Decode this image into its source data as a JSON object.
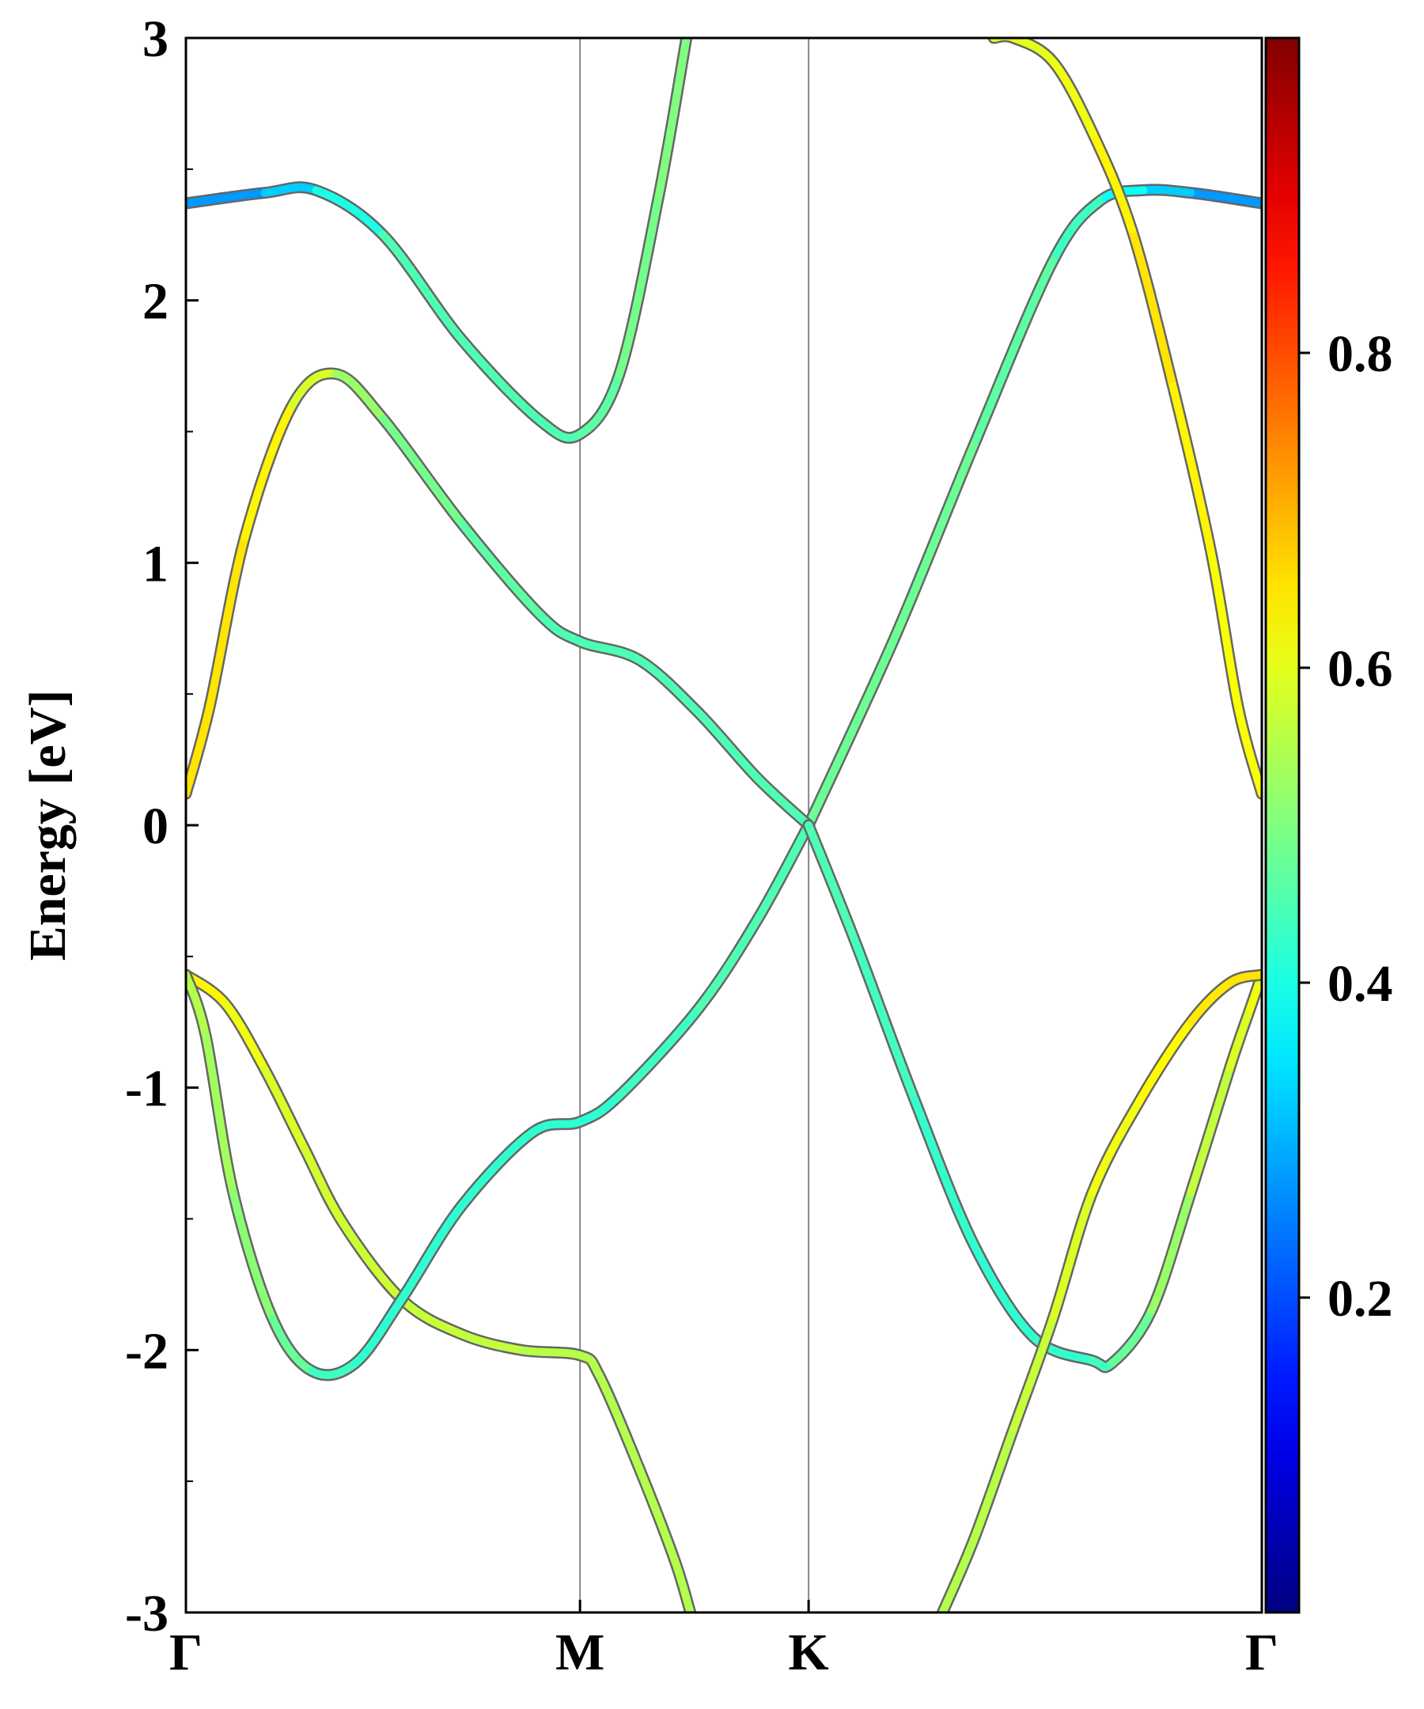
{
  "chart_data": {
    "type": "line",
    "title": "",
    "xlabel": "",
    "ylabel": "Energy [eV]",
    "ylim": [
      -3,
      3
    ],
    "yticks": [
      3,
      2,
      1,
      0,
      -1,
      -2,
      -3
    ],
    "ytick_labels": [
      "3",
      "2",
      "1",
      "0",
      "-1",
      "-2",
      "-3"
    ],
    "xlim": [
      0,
      2.73
    ],
    "kpoints": [
      {
        "label": "Γ",
        "x": 0
      },
      {
        "label": "M",
        "x": 1.0
      },
      {
        "label": "K",
        "x": 1.58
      },
      {
        "label": "Γ",
        "x": 2.73
      }
    ],
    "grid": false,
    "colorbar": {
      "colormap": "jet",
      "range": [
        0,
        1
      ],
      "ticks": [
        0.2,
        0.4,
        0.6,
        0.8
      ],
      "tick_labels": [
        "0.2",
        "0.4",
        "0.6",
        "0.8"
      ]
    },
    "series": [
      {
        "x": [
          0,
          0.2,
          0.33,
          0.5,
          0.7,
          0.9,
          1.0,
          1.1,
          1.2,
          1.27
        ],
        "y": [
          2.37,
          2.41,
          2.42,
          2.25,
          1.85,
          1.54,
          1.49,
          1.72,
          2.4,
          3.0
        ],
        "weights": [
          0.25,
          0.3,
          0.35,
          0.45,
          0.45,
          0.45,
          0.45,
          0.48,
          0.5,
          0.5
        ]
      },
      {
        "x": [
          2.73,
          2.55,
          2.43,
          2.32,
          2.2,
          2.0,
          1.8,
          1.58
        ],
        "y": [
          2.37,
          2.41,
          2.42,
          2.38,
          2.15,
          1.45,
          0.72,
          0.0
        ],
        "weights": [
          0.25,
          0.3,
          0.35,
          0.42,
          0.45,
          0.48,
          0.48,
          0.48
        ]
      },
      {
        "x": [
          0,
          0.06,
          0.15,
          0.27,
          0.38,
          0.5,
          0.7,
          0.9,
          1.0,
          1.15,
          1.3,
          1.45,
          1.58
        ],
        "y": [
          0.12,
          0.45,
          1.1,
          1.6,
          1.72,
          1.55,
          1.15,
          0.8,
          0.7,
          0.63,
          0.43,
          0.18,
          0.0
        ],
        "weights": [
          0.65,
          0.65,
          0.65,
          0.62,
          0.55,
          0.5,
          0.48,
          0.45,
          0.45,
          0.45,
          0.45,
          0.45,
          0.45
        ]
      },
      {
        "x": [
          2.73,
          2.67,
          2.6,
          2.5,
          2.4,
          2.3,
          2.2,
          2.1,
          2.05
        ],
        "y": [
          0.12,
          0.45,
          1.05,
          1.7,
          2.27,
          2.64,
          2.91,
          3.0,
          3.0
        ],
        "weights": [
          0.62,
          0.62,
          0.62,
          0.65,
          0.65,
          0.62,
          0.6,
          0.6,
          0.6
        ]
      },
      {
        "x": [
          0,
          0.1,
          0.2,
          0.3,
          0.4,
          0.55,
          0.7,
          0.85,
          1.0,
          1.05,
          1.15,
          1.24,
          1.28
        ],
        "y": [
          -0.57,
          -0.68,
          -0.93,
          -1.23,
          -1.52,
          -1.81,
          -1.94,
          -2.0,
          -2.02,
          -2.1,
          -2.45,
          -2.8,
          -3.0
        ],
        "weights": [
          0.65,
          0.62,
          0.6,
          0.58,
          0.58,
          0.57,
          0.57,
          0.56,
          0.55,
          0.55,
          0.55,
          0.55,
          0.55
        ]
      },
      {
        "x": [
          0,
          0.05,
          0.12,
          0.22,
          0.32,
          0.43,
          0.55,
          0.7,
          0.88,
          1.0,
          1.1,
          1.3,
          1.45,
          1.58
        ],
        "y": [
          -0.57,
          -0.8,
          -1.4,
          -1.88,
          -2.08,
          -2.05,
          -1.8,
          -1.45,
          -1.17,
          -1.13,
          -1.03,
          -0.7,
          -0.36,
          0.0
        ],
        "weights": [
          0.55,
          0.55,
          0.52,
          0.5,
          0.45,
          0.42,
          0.42,
          0.42,
          0.42,
          0.42,
          0.42,
          0.45,
          0.45,
          0.45
        ]
      },
      {
        "x": [
          1.58,
          1.7,
          1.85,
          2.0,
          2.15,
          2.3,
          2.35,
          2.45,
          2.55,
          2.65,
          2.7,
          2.73
        ],
        "y": [
          0.0,
          -0.45,
          -1.05,
          -1.6,
          -1.95,
          -2.04,
          -2.05,
          -1.85,
          -1.4,
          -0.92,
          -0.7,
          -0.57
        ],
        "weights": [
          0.45,
          0.45,
          0.43,
          0.42,
          0.42,
          0.43,
          0.45,
          0.5,
          0.55,
          0.58,
          0.6,
          0.62
        ]
      },
      {
        "x": [
          1.92,
          2.0,
          2.1,
          2.2,
          2.3,
          2.42,
          2.55,
          2.65,
          2.73
        ],
        "y": [
          -3.0,
          -2.72,
          -2.3,
          -1.88,
          -1.4,
          -1.05,
          -0.75,
          -0.6,
          -0.57
        ],
        "weights": [
          0.55,
          0.55,
          0.56,
          0.58,
          0.6,
          0.62,
          0.64,
          0.65,
          0.65
        ]
      }
    ]
  }
}
